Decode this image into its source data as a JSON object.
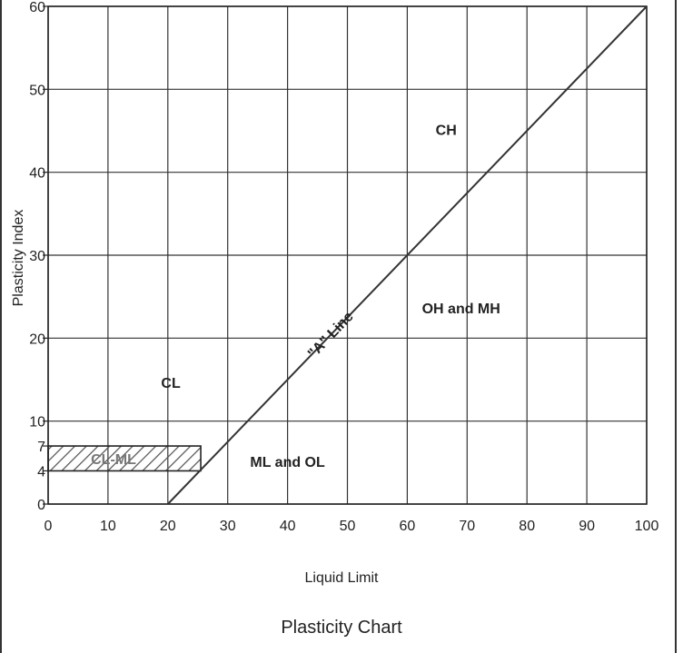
{
  "chart_data": {
    "type": "line",
    "title": "Plasticity Chart",
    "xlabel": "Liquid Limit",
    "ylabel": "Plasticity Index",
    "xlim": [
      0,
      100
    ],
    "ylim": [
      0,
      60
    ],
    "xticks": [
      0,
      10,
      20,
      30,
      40,
      50,
      60,
      70,
      80,
      90,
      100
    ],
    "yticks": [
      0,
      4,
      7,
      10,
      20,
      30,
      40,
      50,
      60
    ],
    "grid": true,
    "series": [
      {
        "name": "\"A\" Line",
        "x": [
          20,
          100
        ],
        "y": [
          0,
          60
        ]
      }
    ],
    "hatched_zone": {
      "label": "CL-ML",
      "x": [
        0,
        25.5
      ],
      "y": [
        4,
        7
      ]
    },
    "region_labels": [
      {
        "label": "CH",
        "x": 66.5,
        "y": 44.5
      },
      {
        "label": "OH and MH",
        "x": 69,
        "y": 23
      },
      {
        "label": "CL",
        "x": 20.5,
        "y": 14
      },
      {
        "label": "ML and OL",
        "x": 40,
        "y": 4.5
      }
    ],
    "line_label": {
      "text": "\"A\" Line",
      "x": 45,
      "y": 20
    }
  }
}
